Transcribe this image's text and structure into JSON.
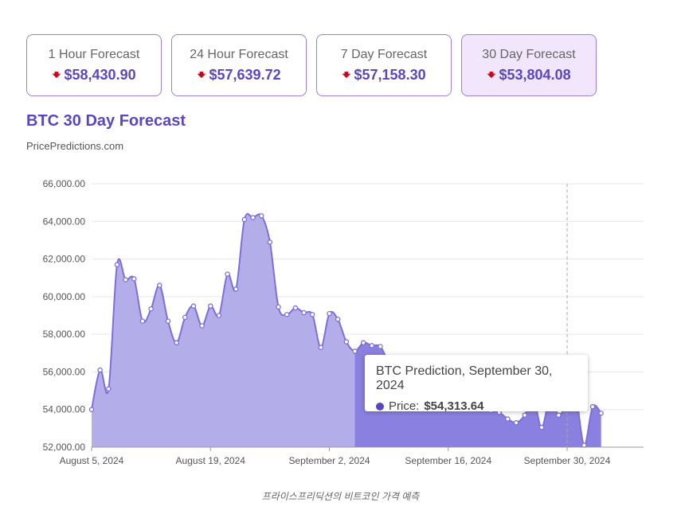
{
  "forecasts": [
    {
      "label": "1 Hour Forecast",
      "value": "$58,430.90",
      "direction": "down",
      "active": false
    },
    {
      "label": "24 Hour Forecast",
      "value": "$57,639.72",
      "direction": "down",
      "active": false
    },
    {
      "label": "7 Day Forecast",
      "value": "$57,158.30",
      "direction": "down",
      "active": false
    },
    {
      "label": "30 Day Forecast",
      "value": "$53,804.08",
      "direction": "down",
      "active": true
    }
  ],
  "title": "BTC 30 Day Forecast",
  "source": "PricePredictions.com",
  "tooltip": {
    "title": "BTC Prediction, September 30, 2024",
    "price_label": "Price:",
    "price_value": "$54,313.64"
  },
  "caption": "프라이스프리딕션의 비트코인 가격 예측",
  "colors": {
    "accent": "#5b46c2",
    "area_historical": "#b3aeea",
    "area_forecast": "#8a80df",
    "line": "#7d6fd9",
    "down_arrow": "#d0021b"
  },
  "chart_data": {
    "type": "area",
    "title": "BTC 30 Day Forecast",
    "ylim": [
      52000,
      66000
    ],
    "yticks": [
      "52,000.00",
      "54,000.00",
      "56,000.00",
      "58,000.00",
      "60,000.00",
      "62,000.00",
      "64,000.00",
      "66,000.00"
    ],
    "ytick_values": [
      52000,
      54000,
      56000,
      58000,
      60000,
      62000,
      64000,
      66000
    ],
    "xlim": [
      "2024-08-05",
      "2024-10-09"
    ],
    "xticks": [
      "August 5, 2024",
      "August 19, 2024",
      "September 2, 2024",
      "September 16, 2024",
      "September 30, 2024"
    ],
    "xtick_values": [
      "2024-08-05",
      "2024-08-19",
      "2024-09-02",
      "2024-09-16",
      "2024-09-30"
    ],
    "forecast_start": "2024-09-05",
    "highlight_date": "2024-09-30",
    "grid": true,
    "series": [
      {
        "x": [
          "2024-08-05",
          "2024-08-06",
          "2024-08-07",
          "2024-08-08",
          "2024-08-09",
          "2024-08-10",
          "2024-08-11",
          "2024-08-12",
          "2024-08-13",
          "2024-08-14",
          "2024-08-15",
          "2024-08-16",
          "2024-08-17",
          "2024-08-18",
          "2024-08-19",
          "2024-08-20",
          "2024-08-21",
          "2024-08-22",
          "2024-08-23",
          "2024-08-24",
          "2024-08-25",
          "2024-08-26",
          "2024-08-27",
          "2024-08-28",
          "2024-08-29",
          "2024-08-30",
          "2024-08-31",
          "2024-09-01",
          "2024-09-02",
          "2024-09-03",
          "2024-09-04",
          "2024-09-05",
          "2024-09-06",
          "2024-09-07",
          "2024-09-08",
          "2024-09-09",
          "2024-09-10",
          "2024-09-11",
          "2024-09-12",
          "2024-09-13",
          "2024-09-14",
          "2024-09-15",
          "2024-09-16",
          "2024-09-17",
          "2024-09-18",
          "2024-09-19",
          "2024-09-20",
          "2024-09-21",
          "2024-09-22",
          "2024-09-23",
          "2024-09-24",
          "2024-09-25",
          "2024-09-26",
          "2024-09-27",
          "2024-09-28",
          "2024-09-29",
          "2024-09-30",
          "2024-10-01",
          "2024-10-02",
          "2024-10-03",
          "2024-10-04"
        ],
        "values": [
          54000,
          56100,
          55100,
          61700,
          60900,
          60950,
          58700,
          59350,
          60600,
          58700,
          57550,
          58900,
          59500,
          58450,
          59500,
          59000,
          61200,
          60400,
          64100,
          64200,
          64300,
          62900,
          59450,
          59050,
          59400,
          59150,
          59050,
          57300,
          59100,
          58800,
          57600,
          57100,
          57550,
          57400,
          57350,
          56500,
          56100,
          55800,
          55600,
          55300,
          55050,
          54800,
          54600,
          54450,
          54300,
          54150,
          54050,
          53950,
          53850,
          53500,
          53300,
          53700,
          54600,
          53050,
          54650,
          53700,
          54313.64,
          54750,
          52100,
          54150,
          53804.08
        ]
      }
    ]
  }
}
